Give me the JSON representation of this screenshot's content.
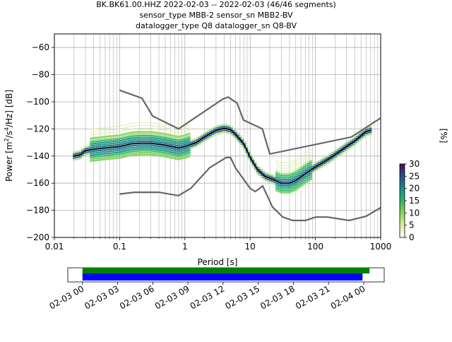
{
  "title": {
    "line1": "BK.BK61.00.HHZ   2022-02-03 -- 2022-02-03  (46/46 segments)",
    "line2": "sensor_type MBB-2 sensor_sn MBB2-BV",
    "line3": "datalogger_type Q8 datalogger_sn Q8-BV"
  },
  "colors": {
    "nlnm_nhnm": "#666666",
    "mean": "#000000",
    "grid": "#b0b0b0",
    "cov_top": "#008000",
    "cov_bottom": "#0000ff"
  },
  "chart_data": {
    "type": "heatmap",
    "title": "BK.BK61.00.HHZ   2022-02-03 -- 2022-02-03  (46/46 segments)",
    "xlabel": "Period [s]",
    "ylabel_parts": {
      "prefix": "Power [m",
      "sup1": "2",
      "mid": "/s",
      "sup2": "4",
      "suffix": "/Hz] [dB]"
    },
    "xscale": "log",
    "xlim": [
      0.01,
      1000
    ],
    "ylim": [
      -200,
      -50
    ],
    "xticks": [
      0.01,
      0.1,
      1,
      10,
      100,
      1000
    ],
    "xtick_labels": [
      "0.01",
      "0.1",
      "1",
      "10",
      "100",
      "1000"
    ],
    "yticks": [
      -200,
      -180,
      -160,
      -140,
      -120,
      -100,
      -80,
      -60
    ],
    "ytick_labels": [
      "−200",
      "−180",
      "−160",
      "−140",
      "−120",
      "−100",
      "−80",
      "−60"
    ],
    "grid": true,
    "colorbar": {
      "label": "[%]",
      "ticks": [
        0,
        5,
        10,
        15,
        20,
        25,
        30
      ],
      "range": [
        0,
        30
      ],
      "colormap": "pqlx-like (white-green-teal-purple)"
    },
    "noise_models": {
      "nhnm": {
        "x": [
          0.1,
          0.22,
          0.32,
          0.8,
          3.8,
          4.6,
          6.3,
          7.9,
          15.4,
          20,
          354.8,
          1000
        ],
        "y": [
          -91.5,
          -97.4,
          -110.5,
          -120,
          -98,
          -96.5,
          -101,
          -113.5,
          -120,
          -138.5,
          -126,
          -112
        ]
      },
      "nlnm": {
        "x": [
          0.1,
          0.17,
          0.4,
          0.8,
          1.24,
          2.4,
          4.3,
          5,
          6,
          10,
          12,
          15.6,
          21.9,
          31.6,
          45,
          70,
          101,
          154,
          328,
          600,
          1000
        ],
        "y": [
          -168,
          -166.7,
          -166.7,
          -169.2,
          -163.7,
          -148.6,
          -141.1,
          -141.1,
          -149,
          -163.8,
          -166.2,
          -162.1,
          -177.5,
          -185,
          -187.5,
          -187.5,
          -185,
          -185,
          -187.5,
          -184.4,
          -178
        ]
      }
    },
    "mean": {
      "x": [
        0.02,
        0.025,
        0.03,
        0.04,
        0.06,
        0.1,
        0.15,
        0.2,
        0.3,
        0.5,
        0.8,
        1,
        1.5,
        2,
        3,
        4,
        5,
        6,
        8,
        10,
        13,
        17,
        22,
        30,
        40,
        50,
        70,
        100,
        150,
        200,
        300,
        400,
        500,
        600,
        700
      ],
      "y": [
        -140,
        -139,
        -136,
        -135,
        -134,
        -133,
        -131,
        -130.5,
        -130.5,
        -132,
        -134,
        -133,
        -130,
        -126,
        -121,
        -119.5,
        -120.5,
        -124,
        -131,
        -141,
        -150,
        -155,
        -157,
        -160,
        -160,
        -158,
        -153,
        -148,
        -143,
        -139,
        -133,
        -129,
        -125,
        -122,
        -121
      ]
    },
    "coverage": {
      "xticks": [
        "02-03 00",
        "02-03 03",
        "02-03 06",
        "02-03 09",
        "02-03 12",
        "02-03 15",
        "02-03 18",
        "02-03 21",
        "02-04 00"
      ],
      "xlim_hours": [
        -1.25,
        25.75
      ],
      "top_bar_hours": [
        0,
        24.5
      ],
      "bottom_bar_hours": [
        0,
        23.9
      ]
    }
  }
}
